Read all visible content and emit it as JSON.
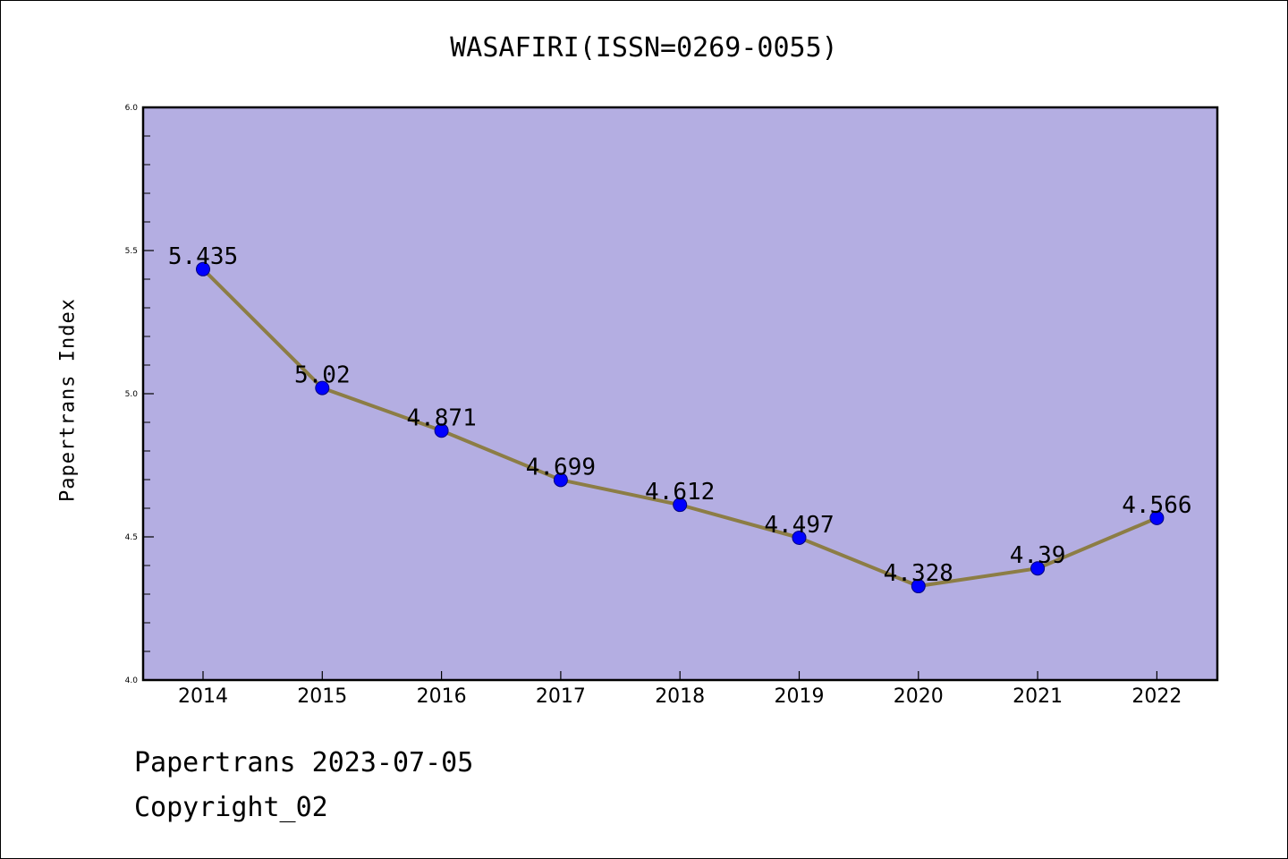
{
  "chart_data": {
    "type": "line",
    "title": "WASAFIRI(ISSN=0269-0055)",
    "xlabel": "",
    "ylabel": "Papertrans Index",
    "categories": [
      "2014",
      "2015",
      "2016",
      "2017",
      "2018",
      "2019",
      "2020",
      "2021",
      "2022"
    ],
    "series": [
      {
        "values": [
          5.435,
          5.02,
          4.871,
          4.699,
          4.612,
          4.497,
          4.328,
          4.39,
          4.566
        ],
        "data_labels": [
          "5.435",
          "5.02",
          "4.871",
          "4.699",
          "4.612",
          "4.497",
          "4.328",
          "4.39",
          "4.566"
        ]
      }
    ],
    "ylim": [
      4.0,
      6.0
    ],
    "yticks": [
      "4.0",
      "4.5",
      "5.0",
      "5.5",
      "6.0"
    ],
    "grid": false,
    "legend": "none",
    "colors": {
      "plot_background": "#b4aee2",
      "line": "#8c7d45",
      "marker": "#0000ff",
      "marker_edge": "#000080"
    }
  },
  "footer": {
    "line1": "Papertrans 2023-07-05",
    "line2": "Copyright_02"
  }
}
